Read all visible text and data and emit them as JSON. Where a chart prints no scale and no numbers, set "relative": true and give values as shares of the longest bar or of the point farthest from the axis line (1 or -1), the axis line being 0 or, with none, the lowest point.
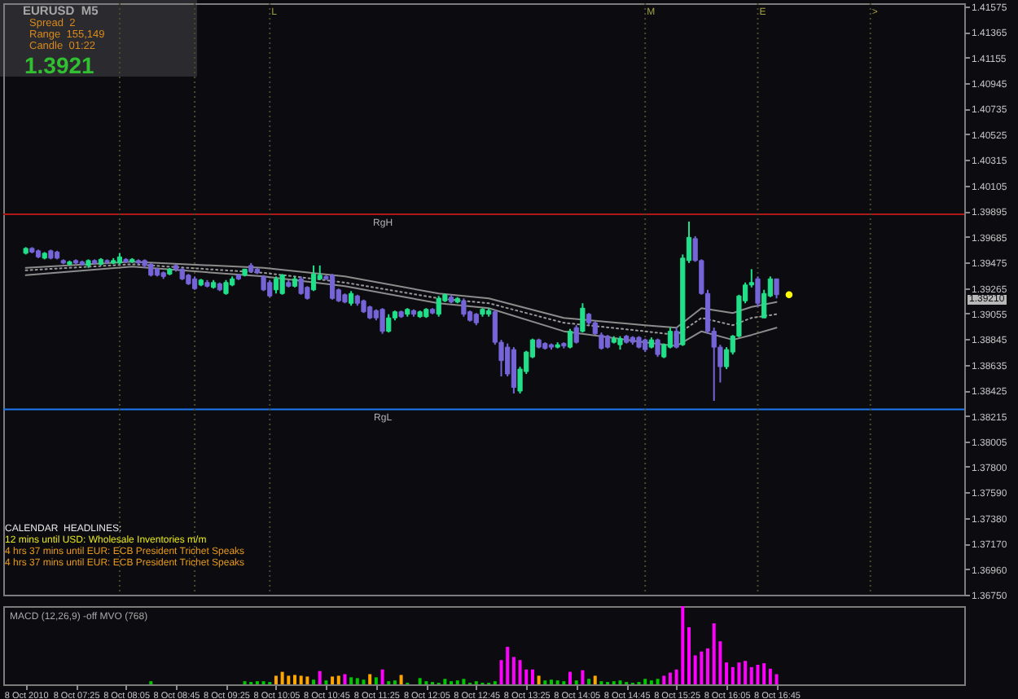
{
  "chart_data": [
    {
      "type": "candlestick",
      "title": "EURUSD  M5",
      "x": [
        "2010-10-08T06:45",
        "2010-10-08T06:50",
        "2010-10-08T06:55",
        "2010-10-08T07:00",
        "2010-10-08T07:05",
        "2010-10-08T07:10",
        "2010-10-08T07:15",
        "2010-10-08T07:20",
        "2010-10-08T07:25",
        "2010-10-08T07:30",
        "2010-10-08T07:35",
        "2010-10-08T07:40",
        "2010-10-08T07:45",
        "2010-10-08T07:50",
        "2010-10-08T07:55",
        "2010-10-08T08:00",
        "2010-10-08T08:05",
        "2010-10-08T08:10",
        "2010-10-08T08:15",
        "2010-10-08T08:20",
        "2010-10-08T08:25",
        "2010-10-08T08:30",
        "2010-10-08T08:35",
        "2010-10-08T08:40",
        "2010-10-08T08:45",
        "2010-10-08T08:50",
        "2010-10-08T08:55",
        "2010-10-08T09:00",
        "2010-10-08T09:05",
        "2010-10-08T09:10",
        "2010-10-08T09:15",
        "2010-10-08T09:20",
        "2010-10-08T09:25",
        "2010-10-08T09:30",
        "2010-10-08T09:35",
        "2010-10-08T09:40",
        "2010-10-08T09:45",
        "2010-10-08T09:50",
        "2010-10-08T09:55",
        "2010-10-08T10:00",
        "2010-10-08T10:05",
        "2010-10-08T10:10",
        "2010-10-08T10:15",
        "2010-10-08T10:20",
        "2010-10-08T10:25",
        "2010-10-08T10:30",
        "2010-10-08T10:35",
        "2010-10-08T10:40",
        "2010-10-08T10:45",
        "2010-10-08T10:50",
        "2010-10-08T10:55",
        "2010-10-08T11:00",
        "2010-10-08T11:05",
        "2010-10-08T11:10",
        "2010-10-08T11:15",
        "2010-10-08T11:20",
        "2010-10-08T11:25",
        "2010-10-08T11:30",
        "2010-10-08T11:35",
        "2010-10-08T11:40",
        "2010-10-08T11:45",
        "2010-10-08T11:50",
        "2010-10-08T11:55",
        "2010-10-08T12:00",
        "2010-10-08T12:05",
        "2010-10-08T12:10",
        "2010-10-08T12:15",
        "2010-10-08T12:20",
        "2010-10-08T12:25",
        "2010-10-08T12:30",
        "2010-10-08T12:35",
        "2010-10-08T12:40",
        "2010-10-08T12:45",
        "2010-10-08T12:50",
        "2010-10-08T12:55",
        "2010-10-08T13:00",
        "2010-10-08T13:05",
        "2010-10-08T13:10",
        "2010-10-08T13:15",
        "2010-10-08T13:20",
        "2010-10-08T13:25",
        "2010-10-08T13:30",
        "2010-10-08T13:35",
        "2010-10-08T13:40",
        "2010-10-08T13:45",
        "2010-10-08T13:50",
        "2010-10-08T13:55",
        "2010-10-08T14:00",
        "2010-10-08T14:05",
        "2010-10-08T14:10",
        "2010-10-08T14:15",
        "2010-10-08T14:20",
        "2010-10-08T14:25",
        "2010-10-08T14:30",
        "2010-10-08T14:35",
        "2010-10-08T14:40",
        "2010-10-08T14:45",
        "2010-10-08T14:50",
        "2010-10-08T14:55",
        "2010-10-08T15:00",
        "2010-10-08T15:05",
        "2010-10-08T15:10",
        "2010-10-08T15:15",
        "2010-10-08T15:20",
        "2010-10-08T15:25",
        "2010-10-08T15:30",
        "2010-10-08T15:35",
        "2010-10-08T15:40",
        "2010-10-08T15:45",
        "2010-10-08T15:50",
        "2010-10-08T15:55",
        "2010-10-08T16:00",
        "2010-10-08T16:05",
        "2010-10-08T16:10",
        "2010-10-08T16:15",
        "2010-10-08T16:20",
        "2010-10-08T16:25",
        "2010-10-08T16:30",
        "2010-10-08T16:35",
        "2010-10-08T16:40",
        "2010-10-08T16:45"
      ],
      "ohlc": [
        [
          1.3955,
          1.396,
          1.3954,
          1.3959
        ],
        [
          1.3959,
          1.396,
          1.3955,
          1.3956
        ],
        [
          1.3957,
          1.3958,
          1.3951,
          1.3952
        ],
        [
          1.3951,
          1.3956,
          1.395,
          1.3955
        ],
        [
          1.3957,
          1.3958,
          1.395,
          1.3951
        ],
        [
          1.3956,
          1.3957,
          1.395,
          1.3951
        ],
        [
          1.3949,
          1.395,
          1.3946,
          1.3947
        ],
        [
          1.3946,
          1.3949,
          1.3945,
          1.3948
        ],
        [
          1.3949,
          1.395,
          1.3946,
          1.3947
        ],
        [
          1.3948,
          1.3949,
          1.3945,
          1.3946
        ],
        [
          1.3945,
          1.395,
          1.3943,
          1.3949
        ],
        [
          1.3949,
          1.395,
          1.3946,
          1.3947
        ],
        [
          1.3946,
          1.3951,
          1.3945,
          1.395
        ],
        [
          1.3949,
          1.395,
          1.3946,
          1.3948
        ],
        [
          1.3947,
          1.3951,
          1.3946,
          1.3949
        ],
        [
          1.3947,
          1.3955,
          1.3946,
          1.3952
        ],
        [
          1.395,
          1.3951,
          1.3947,
          1.3948
        ],
        [
          1.3948,
          1.3951,
          1.3947,
          1.395
        ],
        [
          1.3949,
          1.395,
          1.3946,
          1.3947
        ],
        [
          1.3949,
          1.395,
          1.3943,
          1.3945
        ],
        [
          1.3946,
          1.3947,
          1.3936,
          1.3937
        ],
        [
          1.3942,
          1.3943,
          1.3936,
          1.3937
        ],
        [
          1.3939,
          1.394,
          1.3934,
          1.3936
        ],
        [
          1.3938,
          1.3943,
          1.3937,
          1.3942
        ],
        [
          1.3945,
          1.3946,
          1.394,
          1.3942
        ],
        [
          1.3942,
          1.3943,
          1.3933,
          1.3934
        ],
        [
          1.3937,
          1.3938,
          1.3929,
          1.393
        ],
        [
          1.3934,
          1.3936,
          1.3925,
          1.3926
        ],
        [
          1.3929,
          1.3934,
          1.3928,
          1.3933
        ],
        [
          1.3931,
          1.3933,
          1.3927,
          1.3928
        ],
        [
          1.3927,
          1.3933,
          1.3926,
          1.3931
        ],
        [
          1.393,
          1.3931,
          1.3924,
          1.3925
        ],
        [
          1.3922,
          1.3933,
          1.3921,
          1.3931
        ],
        [
          1.3929,
          1.3936,
          1.3928,
          1.3934
        ],
        [
          1.3937,
          1.3938,
          1.3933,
          1.3934
        ],
        [
          1.3937,
          1.3942,
          1.3936,
          1.3942
        ],
        [
          1.3945,
          1.3947,
          1.3939,
          1.394
        ],
        [
          1.3942,
          1.3943,
          1.3938,
          1.3939
        ],
        [
          1.3936,
          1.3937,
          1.3924,
          1.3925
        ],
        [
          1.3931,
          1.3933,
          1.3919,
          1.392
        ],
        [
          1.3925,
          1.3936,
          1.3922,
          1.3934
        ],
        [
          1.3922,
          1.3938,
          1.3921,
          1.3937
        ],
        [
          1.3931,
          1.3933,
          1.3927,
          1.3928
        ],
        [
          1.3928,
          1.3936,
          1.3927,
          1.3934
        ],
        [
          1.3934,
          1.3936,
          1.3921,
          1.3922
        ],
        [
          1.3927,
          1.3928,
          1.3917,
          1.3918
        ],
        [
          1.3925,
          1.3945,
          1.3924,
          1.3938
        ],
        [
          1.3934,
          1.3945,
          1.3933,
          1.3937
        ],
        [
          1.3936,
          1.3937,
          1.3933,
          1.3934
        ],
        [
          1.3937,
          1.3938,
          1.3917,
          1.3918
        ],
        [
          1.3925,
          1.3926,
          1.3915,
          1.3916
        ],
        [
          1.3921,
          1.3922,
          1.3914,
          1.3915
        ],
        [
          1.3914,
          1.3924,
          1.3912,
          1.3922
        ],
        [
          1.392,
          1.3921,
          1.3912,
          1.3914
        ],
        [
          1.3916,
          1.3917,
          1.3906,
          1.3907
        ],
        [
          1.3911,
          1.3912,
          1.3901,
          1.3902
        ],
        [
          1.3908,
          1.3909,
          1.39,
          1.3902
        ],
        [
          1.3909,
          1.391,
          1.3889,
          1.3891
        ],
        [
          1.3891,
          1.3905,
          1.389,
          1.3902
        ],
        [
          1.3902,
          1.3908,
          1.39,
          1.3907
        ],
        [
          1.3907,
          1.3908,
          1.3902,
          1.3903
        ],
        [
          1.3905,
          1.391,
          1.3903,
          1.3909
        ],
        [
          1.3908,
          1.3909,
          1.3903,
          1.3905
        ],
        [
          1.3903,
          1.3908,
          1.3902,
          1.3907
        ],
        [
          1.3903,
          1.391,
          1.3902,
          1.3909
        ],
        [
          1.3909,
          1.391,
          1.3905,
          1.3906
        ],
        [
          1.3905,
          1.392,
          1.3903,
          1.3918
        ],
        [
          1.3916,
          1.3922,
          1.3915,
          1.3921
        ],
        [
          1.3919,
          1.3921,
          1.3914,
          1.3915
        ],
        [
          1.3915,
          1.3919,
          1.3914,
          1.3918
        ],
        [
          1.3916,
          1.3918,
          1.3903,
          1.3905
        ],
        [
          1.3907,
          1.3908,
          1.3899,
          1.39
        ],
        [
          1.3905,
          1.3906,
          1.3896,
          1.3898
        ],
        [
          1.3905,
          1.391,
          1.3903,
          1.3909
        ],
        [
          1.3905,
          1.391,
          1.3903,
          1.3908
        ],
        [
          1.3907,
          1.3909,
          1.388,
          1.3882
        ],
        [
          1.3882,
          1.3884,
          1.3854,
          1.3867
        ],
        [
          1.3878,
          1.3881,
          1.3854,
          1.3856
        ],
        [
          1.3876,
          1.3878,
          1.384,
          1.3845
        ],
        [
          1.3842,
          1.3862,
          1.384,
          1.386
        ],
        [
          1.3858,
          1.3875,
          1.3856,
          1.3874
        ],
        [
          1.387,
          1.3885,
          1.3869,
          1.3884
        ],
        [
          1.3884,
          1.3885,
          1.3877,
          1.3878
        ],
        [
          1.3881,
          1.3882,
          1.3876,
          1.3877
        ],
        [
          1.388,
          1.3881,
          1.3876,
          1.3878
        ],
        [
          1.3878,
          1.3882,
          1.3877,
          1.388
        ],
        [
          1.3881,
          1.3882,
          1.3877,
          1.3879
        ],
        [
          1.3878,
          1.3893,
          1.3877,
          1.3891
        ],
        [
          1.3894,
          1.3896,
          1.3881,
          1.3882
        ],
        [
          1.3891,
          1.3914,
          1.389,
          1.391
        ],
        [
          1.3905,
          1.3906,
          1.3896,
          1.3898
        ],
        [
          1.3898,
          1.3899,
          1.3888,
          1.3889
        ],
        [
          1.3888,
          1.389,
          1.3876,
          1.3877
        ],
        [
          1.3887,
          1.3888,
          1.3877,
          1.3878
        ],
        [
          1.3882,
          1.3887,
          1.3881,
          1.3885
        ],
        [
          1.388,
          1.3887,
          1.3876,
          1.3885
        ],
        [
          1.3887,
          1.3888,
          1.3881,
          1.3882
        ],
        [
          1.3886,
          1.3887,
          1.388,
          1.3882
        ],
        [
          1.3886,
          1.3887,
          1.3877,
          1.3878
        ],
        [
          1.3884,
          1.3885,
          1.3874,
          1.3876
        ],
        [
          1.3878,
          1.3886,
          1.3877,
          1.3884
        ],
        [
          1.3884,
          1.3885,
          1.387,
          1.3872
        ],
        [
          1.387,
          1.3881,
          1.3869,
          1.388
        ],
        [
          1.3878,
          1.3894,
          1.3877,
          1.3891
        ],
        [
          1.3891,
          1.3894,
          1.3877,
          1.3878
        ],
        [
          1.388,
          1.3954,
          1.3879,
          1.3951
        ],
        [
          1.3949,
          1.3981,
          1.3947,
          1.3968
        ],
        [
          1.3967,
          1.3969,
          1.3948,
          1.3949
        ],
        [
          1.3949,
          1.395,
          1.3921,
          1.3922
        ],
        [
          1.3922,
          1.3925,
          1.3889,
          1.3891
        ],
        [
          1.3891,
          1.3894,
          1.3834,
          1.3878
        ],
        [
          1.3878,
          1.388,
          1.3849,
          1.3862
        ],
        [
          1.3862,
          1.3878,
          1.386,
          1.3876
        ],
        [
          1.3874,
          1.3888,
          1.3872,
          1.3887
        ],
        [
          1.3887,
          1.3921,
          1.3886,
          1.392
        ],
        [
          1.3916,
          1.3931,
          1.3914,
          1.3929
        ],
        [
          1.3929,
          1.3942,
          1.3927,
          1.3931
        ],
        [
          1.3934,
          1.3936,
          1.3911,
          1.3914
        ],
        [
          1.3902,
          1.3925,
          1.3902,
          1.3922
        ],
        [
          1.392,
          1.3936,
          1.3919,
          1.3934
        ],
        [
          1.3934,
          1.3934,
          1.3918,
          1.3921
        ]
      ],
      "colors": [
        "#22e08a",
        "#7565d8",
        "#7565d8",
        "#22e08a",
        "#7565d8",
        "#7565d8",
        "#7565d8",
        "#22e08a",
        "#7565d8",
        "#7565d8",
        "#22e08a",
        "#7565d8",
        "#22e08a",
        "#7565d8",
        "#22e08a",
        "#22e08a",
        "#7565d8",
        "#22e08a",
        "#7565d8",
        "#7565d8",
        "#7565d8",
        "#7565d8",
        "#7565d8",
        "#22e08a",
        "#7565d8",
        "#7565d8",
        "#7565d8",
        "#7565d8",
        "#22e08a",
        "#7565d8",
        "#22e08a",
        "#7565d8",
        "#22e08a",
        "#22e08a",
        "#7565d8",
        "#22e08a",
        "#7565d8",
        "#7565d8",
        "#7565d8",
        "#7565d8",
        "#22e08a",
        "#22e08a",
        "#7565d8",
        "#22e08a",
        "#7565d8",
        "#7565d8",
        "#22e08a",
        "#22e08a",
        "#7565d8",
        "#7565d8",
        "#7565d8",
        "#7565d8",
        "#22e08a",
        "#7565d8",
        "#7565d8",
        "#7565d8",
        "#7565d8",
        "#7565d8",
        "#22e08a",
        "#22e08a",
        "#7565d8",
        "#22e08a",
        "#7565d8",
        "#22e08a",
        "#22e08a",
        "#7565d8",
        "#22e08a",
        "#22e08a",
        "#7565d8",
        "#22e08a",
        "#7565d8",
        "#7565d8",
        "#7565d8",
        "#22e08a",
        "#22e08a",
        "#7565d8",
        "#7565d8",
        "#7565d8",
        "#7565d8",
        "#22e08a",
        "#22e08a",
        "#22e08a",
        "#7565d8",
        "#7565d8",
        "#7565d8",
        "#22e08a",
        "#7565d8",
        "#22e08a",
        "#7565d8",
        "#22e08a",
        "#7565d8",
        "#7565d8",
        "#7565d8",
        "#7565d8",
        "#22e08a",
        "#22e08a",
        "#7565d8",
        "#7565d8",
        "#7565d8",
        "#7565d8",
        "#22e08a",
        "#7565d8",
        "#22e08a",
        "#22e08a",
        "#7565d8",
        "#22e08a",
        "#22e08a",
        "#7565d8",
        "#7565d8",
        "#7565d8",
        "#7565d8",
        "#7565d8",
        "#22e08a",
        "#22e08a",
        "#22e08a",
        "#22e08a",
        "#22e08a",
        "#7565d8",
        "#22e08a",
        "#22e08a",
        "#7565d8"
      ],
      "series": [
        {
          "type": "line",
          "color": "#8c8c8c",
          "line_style": "solid",
          "x": [
            "2010-10-08T06:45",
            "2010-10-08T08:10",
            "2010-10-08T09:55",
            "2010-10-08T11:00",
            "2010-10-08T12:15",
            "2010-10-08T12:55",
            "2010-10-08T13:55",
            "2010-10-08T15:00",
            "2010-10-08T15:25",
            "2010-10-08T15:45",
            "2010-10-08T16:10",
            "2010-10-08T16:25",
            "2010-10-08T16:45"
          ],
          "values": [
            1.3943,
            1.3948,
            1.3943,
            1.3936,
            1.3922,
            1.3918,
            1.3902,
            1.3896,
            1.3894,
            1.391,
            1.3906,
            1.3911,
            1.3915
          ]
        },
        {
          "type": "line",
          "color": "#9a9a9a",
          "line_style": "dotted",
          "x": [
            "2010-10-08T06:45",
            "2010-10-08T08:10",
            "2010-10-08T09:55",
            "2010-10-08T11:00",
            "2010-10-08T12:15",
            "2010-10-08T12:55",
            "2010-10-08T13:55",
            "2010-10-08T15:00",
            "2010-10-08T15:25",
            "2010-10-08T15:45",
            "2010-10-08T16:10",
            "2010-10-08T16:25",
            "2010-10-08T16:45"
          ],
          "values": [
            1.3941,
            1.3946,
            1.3939,
            1.3931,
            1.3918,
            1.3914,
            1.3898,
            1.3891,
            1.3888,
            1.3902,
            1.3896,
            1.3902,
            1.3905
          ]
        },
        {
          "type": "line",
          "color": "#8c8c8c",
          "line_style": "solid",
          "x": [
            "2010-10-08T06:45",
            "2010-10-08T08:10",
            "2010-10-08T09:55",
            "2010-10-08T11:00",
            "2010-10-08T12:15",
            "2010-10-08T12:55",
            "2010-10-08T13:55",
            "2010-10-08T15:00",
            "2010-10-08T15:25",
            "2010-10-08T15:45",
            "2010-10-08T16:10",
            "2010-10-08T16:25",
            "2010-10-08T16:45"
          ],
          "values": [
            1.3937,
            1.3944,
            1.3936,
            1.3928,
            1.3914,
            1.391,
            1.3891,
            1.3882,
            1.3879,
            1.3891,
            1.3884,
            1.3888,
            1.3894
          ]
        },
        {
          "type": "scatter",
          "color": "#ffff00",
          "marker": "circle",
          "x": [
            "2010-10-08T16:55"
          ],
          "values": [
            1.3921
          ]
        }
      ],
      "xlim": [
        "2010-10-08T06:27",
        "2010-10-08T19:15"
      ],
      "ylim": [
        1.3675,
        1.416
      ],
      "yticks": [
        1.41575,
        1.41365,
        1.41155,
        1.40945,
        1.40735,
        1.40525,
        1.40315,
        1.40105,
        1.39895,
        1.39685,
        1.39475,
        1.39265,
        1.39055,
        1.38845,
        1.38635,
        1.38425,
        1.38215,
        1.38005,
        {
          "value": 1.378,
          "label": "1.37800"
        },
        {
          "value": 1.3759,
          "label": "1.37590"
        },
        {
          "value": 1.3738,
          "label": "1.37380"
        },
        {
          "value": 1.3717,
          "label": "1.37170"
        },
        {
          "value": 1.3696,
          "label": "1.36960"
        },
        {
          "value": 1.3675,
          "label": "1.36750"
        }
      ],
      "tick_labels": "y",
      "ref_lines": [
        {
          "axis": "y",
          "value": 1.3987,
          "label": "RgH",
          "color": "#b01818"
        },
        {
          "axis": "y",
          "value": 1.3827,
          "label": "RgL",
          "color": "#1e78f0"
        },
        {
          "axis": "x",
          "value": "2010-10-08T08:00",
          "color": "#4a4a30",
          "line_style": "dotted"
        },
        {
          "axis": "x",
          "value": "2010-10-08T09:00",
          "color": "#4a4a30",
          "line_style": "dotted"
        },
        {
          "axis": "x",
          "value": "2010-10-08T10:00",
          "label": "L",
          "color": "#4a4a30",
          "line_style": "dotted"
        },
        {
          "axis": "x",
          "value": "2010-10-08T15:00",
          "label": "M",
          "color": "#4a4a30",
          "line_style": "dotted"
        },
        {
          "axis": "x",
          "value": "2010-10-08T16:30",
          "label": "E",
          "color": "#4a4a30",
          "line_style": "dotted"
        },
        {
          "axis": "x",
          "value": "2010-10-08T18:00",
          "label": ">",
          "color": "#4a4a30",
          "line_style": "dotted"
        }
      ],
      "annotations": [
        "Spread  2",
        "Range  155,149",
        "Candle  01:22",
        "1.3921",
        "CALENDAR  HEADLINES:",
        "12 mins until USD: Wholesale Inventories m/m",
        "4 hrs 37 mins until EUR: ECB President Trichet Speaks",
        "4 hrs 37 mins until EUR: ECB President Trichet Speaks",
        "1.39210"
      ]
    },
    {
      "type": "bar",
      "relative": true,
      "title": "MACD (12,26,9) -off     MVO (768)",
      "x": [
        "2010-10-08T08:25",
        "2010-10-08T09:40",
        "2010-10-08T09:45",
        "2010-10-08T09:50",
        "2010-10-08T09:55",
        "2010-10-08T10:00",
        "2010-10-08T10:05",
        "2010-10-08T10:10",
        "2010-10-08T10:15",
        "2010-10-08T10:20",
        "2010-10-08T10:25",
        "2010-10-08T10:30",
        "2010-10-08T10:35",
        "2010-10-08T10:40",
        "2010-10-08T10:45",
        "2010-10-08T10:50",
        "2010-10-08T10:55",
        "2010-10-08T11:00",
        "2010-10-08T11:05",
        "2010-10-08T11:10",
        "2010-10-08T11:15",
        "2010-10-08T11:20",
        "2010-10-08T11:25",
        "2010-10-08T11:30",
        "2010-10-08T11:35",
        "2010-10-08T11:40",
        "2010-10-08T11:45",
        "2010-10-08T11:50",
        "2010-10-08T12:00",
        "2010-10-08T12:05",
        "2010-10-08T12:10",
        "2010-10-08T12:15",
        "2010-10-08T12:20",
        "2010-10-08T12:25",
        "2010-10-08T12:30",
        "2010-10-08T12:35",
        "2010-10-08T12:40",
        "2010-10-08T12:45",
        "2010-10-08T12:50",
        "2010-10-08T12:55",
        "2010-10-08T13:00",
        "2010-10-08T13:05",
        "2010-10-08T13:10",
        "2010-10-08T13:15",
        "2010-10-08T13:20",
        "2010-10-08T13:25",
        "2010-10-08T13:30",
        "2010-10-08T13:35",
        "2010-10-08T13:40",
        "2010-10-08T13:45",
        "2010-10-08T13:50",
        "2010-10-08T13:55",
        "2010-10-08T14:00",
        "2010-10-08T14:05",
        "2010-10-08T14:10",
        "2010-10-08T14:15",
        "2010-10-08T14:20",
        "2010-10-08T14:25",
        "2010-10-08T14:30",
        "2010-10-08T14:35",
        "2010-10-08T14:40",
        "2010-10-08T14:45",
        "2010-10-08T14:50",
        "2010-10-08T14:55",
        "2010-10-08T15:00",
        "2010-10-08T15:05",
        "2010-10-08T15:10",
        "2010-10-08T15:15",
        "2010-10-08T15:20",
        "2010-10-08T15:25",
        "2010-10-08T15:30",
        "2010-10-08T15:35",
        "2010-10-08T15:40",
        "2010-10-08T15:45",
        "2010-10-08T15:50",
        "2010-10-08T15:55",
        "2010-10-08T16:00",
        "2010-10-08T16:05",
        "2010-10-08T16:10",
        "2010-10-08T16:15",
        "2010-10-08T16:20",
        "2010-10-08T16:25",
        "2010-10-08T16:30",
        "2010-10-08T16:35",
        "2010-10-08T16:40",
        "2010-10-08T16:45"
      ],
      "values": [
        0.04,
        0.04,
        0.03,
        0.04,
        0.04,
        0.03,
        0.11,
        0.16,
        0.11,
        0.12,
        0.11,
        0.1,
        0.06,
        0.17,
        0.05,
        0.1,
        0.11,
        0.13,
        0.09,
        0.08,
        0.06,
        0.13,
        0.09,
        0.19,
        0.04,
        0.05,
        0.12,
        0.02,
        0.08,
        0.04,
        0.03,
        0.02,
        0.07,
        0.04,
        0.05,
        0.07,
        0.02,
        0.04,
        0.02,
        0.02,
        0.04,
        0.31,
        0.48,
        0.35,
        0.31,
        0.19,
        0.19,
        0.11,
        0.05,
        0.06,
        0.05,
        0.04,
        0.16,
        0.05,
        0.18,
        0.07,
        0.11,
        0.04,
        0.03,
        0.04,
        0.05,
        0.03,
        0.02,
        0.03,
        0.07,
        0.05,
        0.07,
        0.11,
        0.15,
        0.19,
        1,
        0.73,
        0.37,
        0.42,
        0.46,
        0.78,
        0.55,
        0.28,
        0.22,
        0.28,
        0.3,
        0.22,
        0.25,
        0.27,
        0.2,
        0.13
      ],
      "colors": [
        "#00c800",
        "#00c800",
        "#00c800",
        "#00c800",
        "#00c800",
        "#00c800",
        "#ffa500",
        "#ffa500",
        "#ffa500",
        "#ffa500",
        "#ffa500",
        "#ffa500",
        "#00c800",
        "#ff00ff",
        "#00c800",
        "#ffa500",
        "#ffa500",
        "#ff00ff",
        "#00c800",
        "#00c800",
        "#00c800",
        "#ffa500",
        "#00c800",
        "#ff00ff",
        "#00c800",
        "#00c800",
        "#ffa500",
        "#00c800",
        "#00c800",
        "#00c800",
        "#00c800",
        "#00c800",
        "#00c800",
        "#00c800",
        "#00c800",
        "#00c800",
        "#00c800",
        "#00c800",
        "#00c800",
        "#00c800",
        "#00c800",
        "#ff00ff",
        "#ff00ff",
        "#ff00ff",
        "#ff00ff",
        "#ff00ff",
        "#ff00ff",
        "#ffa500",
        "#00c800",
        "#00c800",
        "#00c800",
        "#00c800",
        "#ff00ff",
        "#00c800",
        "#ff00ff",
        "#00c800",
        "#ffa500",
        "#00c800",
        "#00c800",
        "#00c800",
        "#00c800",
        "#00c800",
        "#00c800",
        "#00c800",
        "#00c800",
        "#00c800",
        "#00c800",
        "#ff00ff",
        "#ff00ff",
        "#ff00ff",
        "#ff00ff",
        "#ff00ff",
        "#ff00ff",
        "#ff00ff",
        "#ff00ff",
        "#ff00ff",
        "#ff00ff",
        "#ff00ff",
        "#ff00ff",
        "#ff00ff",
        "#ff00ff",
        "#ff00ff",
        "#ff00ff",
        "#ff00ff",
        "#ff00ff",
        "#ff00ff"
      ],
      "xlim": [
        "2010-10-08T06:27",
        "2010-10-08T19:15"
      ],
      "xticks": [
        {
          "value": "2010-10-08T06:45",
          "label": "8 Oct 2010"
        },
        {
          "value": "2010-10-08T07:25",
          "label": "8 Oct 07:25"
        },
        {
          "value": "2010-10-08T08:05",
          "label": "8 Oct 08:05"
        },
        {
          "value": "2010-10-08T08:45",
          "label": "8 Oct 08:45"
        },
        {
          "value": "2010-10-08T09:25",
          "label": "8 Oct 09:25"
        },
        {
          "value": "2010-10-08T10:05",
          "label": "8 Oct 10:05"
        },
        {
          "value": "2010-10-08T10:45",
          "label": "8 Oct 10:45"
        },
        {
          "value": "2010-10-08T11:25",
          "label": "8 Oct 11:25"
        },
        {
          "value": "2010-10-08T12:05",
          "label": "8 Oct 12:05"
        },
        {
          "value": "2010-10-08T12:45",
          "label": "8 Oct 12:45"
        },
        {
          "value": "2010-10-08T13:25",
          "label": "8 Oct 13:25"
        },
        {
          "value": "2010-10-08T14:05",
          "label": "8 Oct 14:05"
        },
        {
          "value": "2010-10-08T14:45",
          "label": "8 Oct 14:45"
        },
        {
          "value": "2010-10-08T15:25",
          "label": "8 Oct 15:25"
        },
        {
          "value": "2010-10-08T16:05",
          "label": "8 Oct 16:05"
        },
        {
          "value": "2010-10-08T16:45",
          "label": "8 Oct 16:45"
        }
      ],
      "tick_labels": "x"
    }
  ]
}
